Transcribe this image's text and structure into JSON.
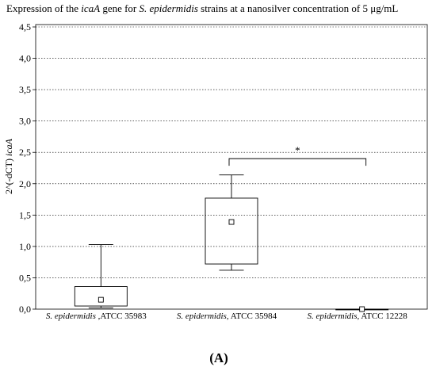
{
  "figure_label": "(A)",
  "chart_data": {
    "type": "box",
    "title_parts": [
      {
        "text": "Expression of the ",
        "italic": false
      },
      {
        "text": "icaA",
        "italic": true
      },
      {
        "text": " gene for ",
        "italic": false
      },
      {
        "text": "S. epidermidis",
        "italic": true
      },
      {
        "text": "  strains at a nanosilver concentration of 5 μg/mL",
        "italic": false
      }
    ],
    "ylabel_parts": [
      {
        "text": "2^(-dCT) ",
        "italic": false
      },
      {
        "text": "icaA",
        "italic": true
      }
    ],
    "ylim": [
      0,
      4.5
    ],
    "yticks": [
      "0,0",
      "0,5",
      "1,0",
      "1,5",
      "2,0",
      "2,5",
      "3,0",
      "3,5",
      "4,0",
      "4,5"
    ],
    "yticks_values": [
      0,
      0.5,
      1.0,
      1.5,
      2.0,
      2.5,
      3.0,
      3.5,
      4.0,
      4.5
    ],
    "grid": true,
    "categories": [
      {
        "species": "S. epidermidis",
        "strain": " ,ATCC 35983"
      },
      {
        "species": "S. epidermidis",
        "strain": ", ATCC 35984"
      },
      {
        "species": "S. epidermidis",
        "strain": ", ATCC 12228"
      }
    ],
    "boxes": [
      {
        "whisker_min": 0.02,
        "q1": 0.05,
        "median": 0.15,
        "q3": 0.36,
        "whisker_max": 1.03
      },
      {
        "whisker_min": 0.62,
        "q1": 0.72,
        "median": 1.39,
        "q3": 1.77,
        "whisker_max": 2.14
      },
      {
        "whisker_min": 0.0,
        "q1": 0.0,
        "median": 0.0,
        "q3": 0.0,
        "whisker_max": 0.0
      }
    ],
    "significance": {
      "between": [
        1,
        2
      ],
      "y": 2.4,
      "label": "*"
    }
  }
}
